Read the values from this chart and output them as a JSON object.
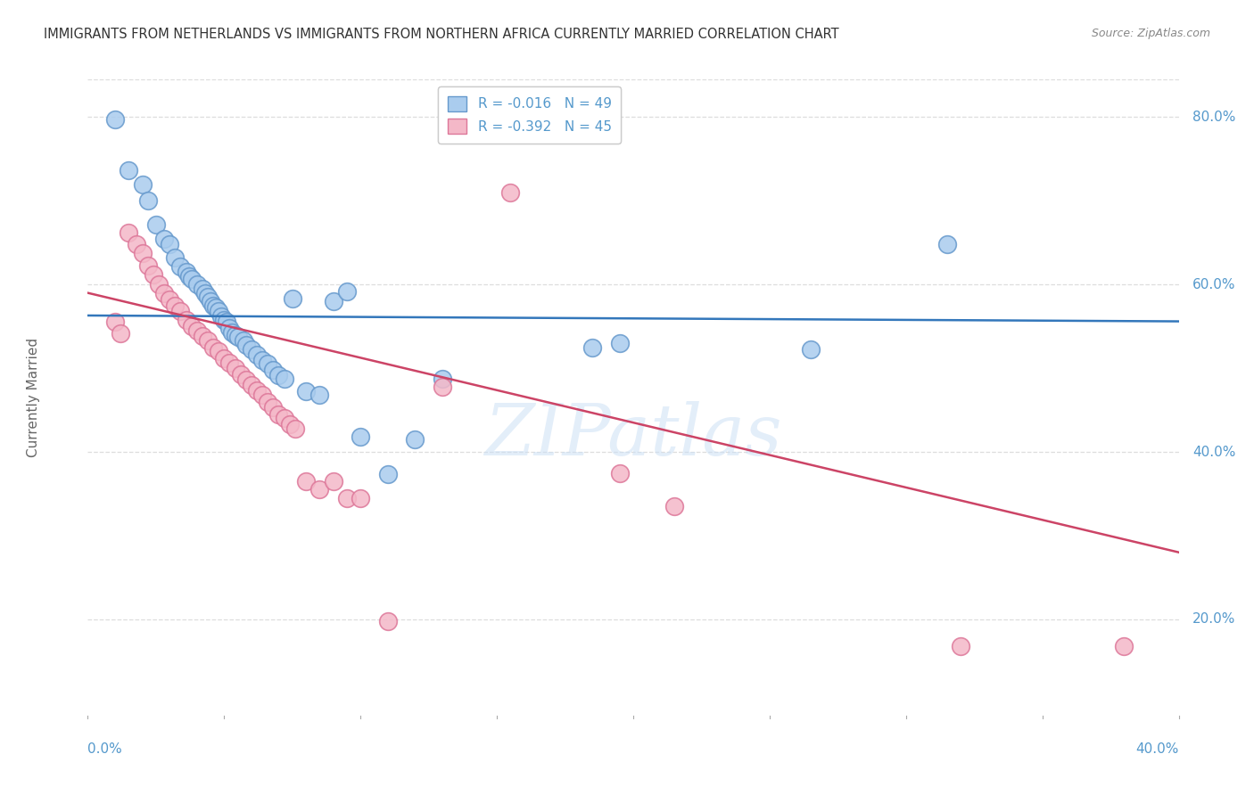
{
  "title": "IMMIGRANTS FROM NETHERLANDS VS IMMIGRANTS FROM NORTHERN AFRICA CURRENTLY MARRIED CORRELATION CHART",
  "source": "Source: ZipAtlas.com",
  "ylabel": "Currently Married",
  "xmin": 0.0,
  "xmax": 0.4,
  "ymin": 0.085,
  "ymax": 0.845,
  "yticks": [
    0.2,
    0.4,
    0.6,
    0.8
  ],
  "ytick_labels": [
    "20.0%",
    "40.0%",
    "60.0%",
    "80.0%"
  ],
  "watermark": "ZIPatlas",
  "series": [
    {
      "name": "Immigrants from Netherlands",
      "R": -0.016,
      "N": 49,
      "color": "#aaccee",
      "edge_color": "#6699cc",
      "trend_color": "#3377bb",
      "points": [
        [
          0.01,
          0.797
        ],
        [
          0.015,
          0.737
        ],
        [
          0.02,
          0.72
        ],
        [
          0.022,
          0.7
        ],
        [
          0.025,
          0.672
        ],
        [
          0.028,
          0.655
        ],
        [
          0.03,
          0.648
        ],
        [
          0.032,
          0.632
        ],
        [
          0.034,
          0.622
        ],
        [
          0.036,
          0.615
        ],
        [
          0.037,
          0.61
        ],
        [
          0.038,
          0.607
        ],
        [
          0.04,
          0.6
        ],
        [
          0.042,
          0.595
        ],
        [
          0.043,
          0.59
        ],
        [
          0.044,
          0.585
        ],
        [
          0.045,
          0.58
        ],
        [
          0.046,
          0.575
        ],
        [
          0.047,
          0.573
        ],
        [
          0.048,
          0.568
        ],
        [
          0.049,
          0.562
        ],
        [
          0.05,
          0.558
        ],
        [
          0.051,
          0.555
        ],
        [
          0.052,
          0.548
        ],
        [
          0.053,
          0.543
        ],
        [
          0.054,
          0.54
        ],
        [
          0.055,
          0.537
        ],
        [
          0.057,
          0.533
        ],
        [
          0.058,
          0.528
        ],
        [
          0.06,
          0.522
        ],
        [
          0.062,
          0.516
        ],
        [
          0.064,
          0.51
        ],
        [
          0.066,
          0.505
        ],
        [
          0.068,
          0.498
        ],
        [
          0.07,
          0.492
        ],
        [
          0.072,
          0.487
        ],
        [
          0.075,
          0.583
        ],
        [
          0.08,
          0.472
        ],
        [
          0.085,
          0.468
        ],
        [
          0.09,
          0.58
        ],
        [
          0.095,
          0.592
        ],
        [
          0.1,
          0.418
        ],
        [
          0.11,
          0.373
        ],
        [
          0.12,
          0.415
        ],
        [
          0.13,
          0.487
        ],
        [
          0.185,
          0.525
        ],
        [
          0.195,
          0.53
        ],
        [
          0.265,
          0.522
        ],
        [
          0.315,
          0.648
        ]
      ],
      "trend_x": [
        0.0,
        0.4
      ],
      "trend_y": [
        0.563,
        0.556
      ]
    },
    {
      "name": "Immigrants from Northern Africa",
      "R": -0.392,
      "N": 45,
      "color": "#f4b8c8",
      "edge_color": "#dd7799",
      "trend_color": "#cc4466",
      "points": [
        [
          0.01,
          0.555
        ],
        [
          0.012,
          0.542
        ],
        [
          0.015,
          0.662
        ],
        [
          0.018,
          0.648
        ],
        [
          0.02,
          0.638
        ],
        [
          0.022,
          0.623
        ],
        [
          0.024,
          0.612
        ],
        [
          0.026,
          0.6
        ],
        [
          0.028,
          0.59
        ],
        [
          0.03,
          0.582
        ],
        [
          0.032,
          0.575
        ],
        [
          0.034,
          0.568
        ],
        [
          0.036,
          0.558
        ],
        [
          0.038,
          0.55
        ],
        [
          0.04,
          0.545
        ],
        [
          0.042,
          0.538
        ],
        [
          0.044,
          0.533
        ],
        [
          0.046,
          0.525
        ],
        [
          0.048,
          0.52
        ],
        [
          0.05,
          0.512
        ],
        [
          0.052,
          0.507
        ],
        [
          0.054,
          0.5
        ],
        [
          0.056,
          0.493
        ],
        [
          0.058,
          0.486
        ],
        [
          0.06,
          0.48
        ],
        [
          0.062,
          0.473
        ],
        [
          0.064,
          0.468
        ],
        [
          0.066,
          0.46
        ],
        [
          0.068,
          0.453
        ],
        [
          0.07,
          0.445
        ],
        [
          0.072,
          0.44
        ],
        [
          0.074,
          0.433
        ],
        [
          0.076,
          0.428
        ],
        [
          0.08,
          0.365
        ],
        [
          0.085,
          0.355
        ],
        [
          0.09,
          0.365
        ],
        [
          0.095,
          0.345
        ],
        [
          0.1,
          0.345
        ],
        [
          0.11,
          0.198
        ],
        [
          0.13,
          0.478
        ],
        [
          0.155,
          0.71
        ],
        [
          0.195,
          0.375
        ],
        [
          0.215,
          0.335
        ],
        [
          0.32,
          0.168
        ],
        [
          0.38,
          0.168
        ]
      ],
      "trend_x": [
        0.0,
        0.4
      ],
      "trend_y": [
        0.59,
        0.28
      ]
    }
  ],
  "background_color": "#ffffff",
  "grid_color": "#dddddd",
  "title_color": "#333333",
  "axis_color": "#5599cc"
}
